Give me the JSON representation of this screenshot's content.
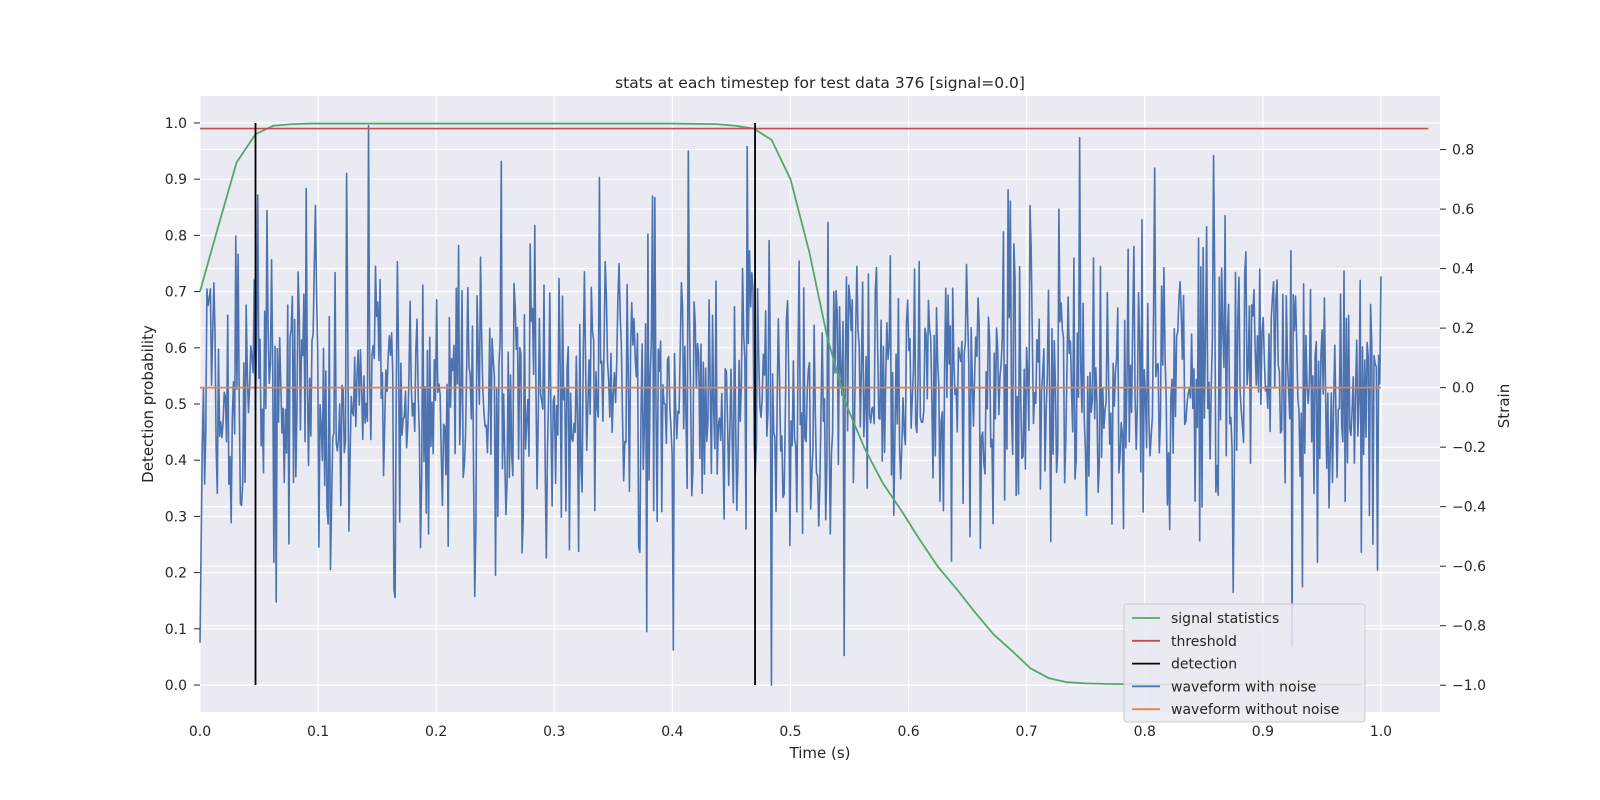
{
  "chart_data": {
    "type": "line",
    "title": "stats at each timestep for test data 376 [signal=0.0]",
    "xlabel": "Time (s)",
    "ylabel_left": "Detection probability",
    "ylabel_right": "Strain",
    "xlim": [
      0.0,
      1.05
    ],
    "ylim_left": [
      -0.048,
      1.048
    ],
    "ylim_right": [
      -1.09,
      0.98
    ],
    "x_ticks": [
      "0.0",
      "0.1",
      "0.2",
      "0.3",
      "0.4",
      "0.5",
      "0.6",
      "0.7",
      "0.8",
      "0.9",
      "1.0"
    ],
    "y_left_ticks": [
      "0.0",
      "0.1",
      "0.2",
      "0.3",
      "0.4",
      "0.5",
      "0.6",
      "0.7",
      "0.8",
      "0.9",
      "1.0"
    ],
    "y_right_ticks": [
      "−1.0",
      "−0.8",
      "−0.6",
      "−0.4",
      "−0.2",
      "0.0",
      "0.2",
      "0.4",
      "0.6",
      "0.8"
    ],
    "grid": true,
    "legend_position": "lower-right",
    "series": [
      {
        "name": "signal statistics",
        "axis": "left",
        "color": "#55a868",
        "x": [
          0.0,
          0.016,
          0.031,
          0.047,
          0.062,
          0.078,
          0.094,
          0.109,
          0.125,
          0.2,
          0.3,
          0.4,
          0.438,
          0.453,
          0.469,
          0.484,
          0.5,
          0.516,
          0.531,
          0.547,
          0.563,
          0.578,
          0.594,
          0.609,
          0.625,
          0.641,
          0.656,
          0.672,
          0.688,
          0.703,
          0.719,
          0.734,
          0.75,
          0.766,
          0.8,
          0.9,
          0.984
        ],
        "y": [
          0.7,
          0.82,
          0.93,
          0.98,
          0.995,
          0.998,
          0.999,
          0.999,
          0.999,
          0.999,
          0.999,
          0.999,
          0.998,
          0.995,
          0.99,
          0.97,
          0.9,
          0.77,
          0.62,
          0.5,
          0.42,
          0.36,
          0.31,
          0.26,
          0.21,
          0.17,
          0.13,
          0.09,
          0.06,
          0.03,
          0.012,
          0.005,
          0.003,
          0.002,
          0.001,
          0.001,
          0.001
        ]
      },
      {
        "name": "threshold",
        "axis": "left",
        "color": "#c44e52",
        "x": [
          0.0,
          1.04
        ],
        "y": [
          0.99,
          0.99
        ]
      },
      {
        "name": "detection",
        "axis": "left",
        "color": "#000000",
        "vlines_x": [
          0.047,
          0.47
        ],
        "y": [
          0.0,
          1.0
        ]
      },
      {
        "name": "waveform with noise",
        "axis": "right",
        "color": "#4c72b0",
        "x_start": 0.0,
        "x_end": 1.0,
        "noise_std": 0.26,
        "peak_min": -1.0,
        "peak_max": 0.88,
        "peaks": [
          {
            "x": 0.143,
            "y": 0.88
          },
          {
            "x": 0.255,
            "y": 0.76
          },
          {
            "x": 0.463,
            "y": 0.81
          },
          {
            "x": 0.484,
            "y": -1.0
          },
          {
            "x": 0.545,
            "y": -0.9
          },
          {
            "x": 0.745,
            "y": 0.84
          },
          {
            "x": 0.858,
            "y": 0.78
          },
          {
            "x": 0.925,
            "y": -0.87
          },
          {
            "x": 0.378,
            "y": -0.82
          },
          {
            "x": 0.065,
            "y": -0.72
          }
        ]
      },
      {
        "name": "waveform without noise",
        "axis": "right",
        "color": "#dd8452",
        "x": [
          0.0,
          1.0
        ],
        "y": [
          0.0,
          0.0
        ]
      }
    ]
  }
}
